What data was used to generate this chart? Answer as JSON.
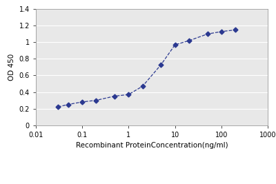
{
  "x": [
    0.03,
    0.05,
    0.1,
    0.2,
    0.5,
    1.0,
    2.0,
    5.0,
    10.0,
    20.0,
    50.0,
    100.0,
    200.0
  ],
  "y": [
    0.22,
    0.25,
    0.28,
    0.3,
    0.35,
    0.37,
    0.47,
    0.73,
    0.97,
    1.02,
    1.1,
    1.13,
    1.15
  ],
  "xlim": [
    0.01,
    1000
  ],
  "ylim": [
    0,
    1.4
  ],
  "yticks": [
    0,
    0.2,
    0.4,
    0.6,
    0.8,
    1.0,
    1.2,
    1.4
  ],
  "xtick_majors": [
    0.01,
    0.1,
    1,
    10,
    100,
    1000
  ],
  "xtick_labels": [
    "0.01",
    "0.1",
    "1",
    "10",
    "100",
    "1000"
  ],
  "xlabel": "Recombinant ProteinConcentration(ng/ml)",
  "ylabel": "OD 450",
  "line_color": "#2B3990",
  "marker": "D",
  "marker_size": 3.5,
  "line_width": 0.9,
  "bg_color": "#ffffff",
  "plot_bg_color": "#e8e8e8",
  "grid_color": "#ffffff",
  "xlabel_fontsize": 7.5,
  "ylabel_fontsize": 7.5,
  "tick_fontsize": 7
}
